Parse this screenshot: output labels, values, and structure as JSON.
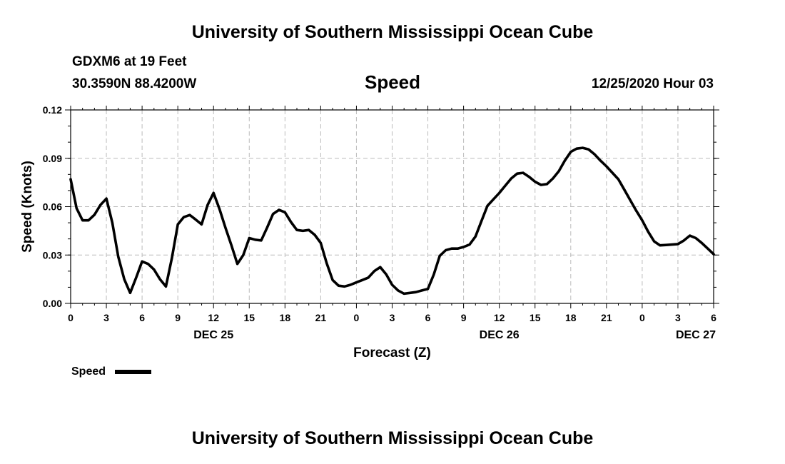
{
  "header": {
    "top_title": "University of Southern Mississippi Ocean Cube",
    "bottom_title": "University of Southern Mississippi Ocean Cube",
    "station": "GDXM6 at 19 Feet",
    "location": "30.3590N 88.4200W",
    "chart_title": "Speed",
    "timestamp": "12/25/2020 Hour 03"
  },
  "colors": {
    "line": "#000000",
    "grid": "#bbbbbb"
  },
  "chart_data": {
    "type": "line",
    "title": "Speed",
    "xlabel": "Forecast (Z)",
    "ylabel": "Speed (Knots)",
    "x_unit": "hours from Dec 25 00Z",
    "xlim": [
      0,
      54
    ],
    "ylim": [
      0,
      0.12
    ],
    "y_ticks": [
      0,
      0.03,
      0.06,
      0.09,
      0.12
    ],
    "y_tick_labels": [
      "0.00",
      "0.03",
      "0.06",
      "0.09",
      "0.12"
    ],
    "x_ticks": [
      0,
      3,
      6,
      9,
      12,
      15,
      18,
      21,
      24,
      27,
      30,
      33,
      36,
      39,
      42,
      45,
      48,
      51,
      54
    ],
    "x_tick_labels": [
      "0",
      "3",
      "6",
      "9",
      "12",
      "15",
      "18",
      "21",
      "0",
      "3",
      "6",
      "9",
      "12",
      "15",
      "18",
      "21",
      "0",
      "3",
      "6"
    ],
    "date_labels": [
      {
        "x": 12,
        "label": "DEC 25"
      },
      {
        "x": 36,
        "label": "DEC 26"
      },
      {
        "x": 52.5,
        "label": "DEC 27"
      }
    ],
    "legend": {
      "label": "Speed",
      "position": "bottom-left"
    },
    "grid": true,
    "series": [
      {
        "name": "Speed",
        "x": [
          0,
          0.5,
          1,
          1.5,
          2,
          2.5,
          3,
          3.5,
          4,
          4.5,
          5,
          5.5,
          6,
          6.5,
          7,
          7.5,
          8,
          8.5,
          9,
          9.5,
          10,
          10.5,
          11,
          11.5,
          12,
          12.5,
          13,
          13.5,
          14,
          14.5,
          15,
          15.5,
          16,
          16.5,
          17,
          17.5,
          18,
          18.5,
          19,
          19.5,
          20,
          20.5,
          21,
          21.5,
          22,
          22.5,
          23,
          23.5,
          24,
          24.5,
          25,
          25.5,
          26,
          26.5,
          27,
          27.5,
          28,
          28.5,
          29,
          29.5,
          30,
          30.5,
          31,
          31.5,
          32,
          32.5,
          33,
          33.5,
          34,
          34.5,
          35,
          35.5,
          36,
          36.5,
          37,
          37.5,
          38,
          38.5,
          39,
          39.5,
          40,
          40.5,
          41,
          41.5,
          42,
          42.5,
          43,
          43.5,
          44,
          44.5,
          45,
          45.5,
          46,
          46.5,
          47,
          47.5,
          48,
          48.5,
          49,
          49.5,
          50,
          50.5,
          51,
          51.5,
          52,
          52.5,
          53,
          53.5,
          54
        ],
        "values": [
          0.077,
          0.059,
          0.0515,
          0.0515,
          0.055,
          0.061,
          0.065,
          0.05,
          0.029,
          0.015,
          0.0065,
          0.016,
          0.026,
          0.0245,
          0.021,
          0.015,
          0.0105,
          0.028,
          0.049,
          0.0535,
          0.0548,
          0.052,
          0.049,
          0.061,
          0.0685,
          0.0585,
          0.047,
          0.036,
          0.0245,
          0.03,
          0.0405,
          0.0395,
          0.039,
          0.047,
          0.0555,
          0.058,
          0.0565,
          0.0505,
          0.0455,
          0.045,
          0.0455,
          0.0425,
          0.0375,
          0.025,
          0.0145,
          0.011,
          0.0105,
          0.0115,
          0.013,
          0.0145,
          0.016,
          0.02,
          0.0225,
          0.018,
          0.0115,
          0.008,
          0.006,
          0.0065,
          0.007,
          0.008,
          0.009,
          0.018,
          0.0295,
          0.033,
          0.034,
          0.034,
          0.035,
          0.0365,
          0.0415,
          0.051,
          0.0605,
          0.0645,
          0.0685,
          0.073,
          0.0775,
          0.0805,
          0.081,
          0.0785,
          0.0755,
          0.0735,
          0.074,
          0.0775,
          0.082,
          0.0885,
          0.094,
          0.096,
          0.0965,
          0.0955,
          0.0925,
          0.0885,
          0.085,
          0.081,
          0.077,
          0.0705,
          0.064,
          0.0575,
          0.0515,
          0.0445,
          0.0385,
          0.036,
          0.0362,
          0.0365,
          0.0368,
          0.039,
          0.042,
          0.0405,
          0.0375,
          0.034,
          0.0305
        ]
      }
    ]
  }
}
